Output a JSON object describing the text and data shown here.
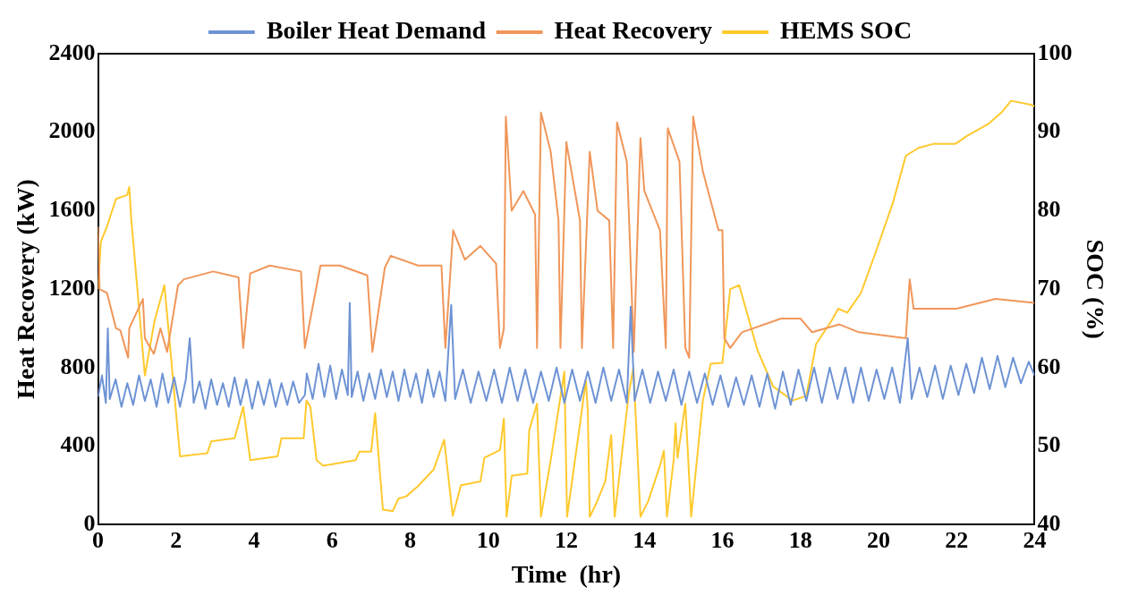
{
  "chart_data": {
    "type": "line",
    "xlabel": "Time  (hr)",
    "ylabel": "Heat Recovery (kW)",
    "y2label": "SOC (%)",
    "xlim": [
      0,
      24
    ],
    "xticks": [
      0,
      2,
      4,
      6,
      8,
      10,
      12,
      14,
      16,
      18,
      20,
      22,
      24
    ],
    "ylim": [
      0,
      2400
    ],
    "yticks": [
      0,
      400,
      800,
      1200,
      1600,
      2000,
      2400
    ],
    "y2lim": [
      40,
      100
    ],
    "y2ticks": [
      40,
      50,
      60,
      70,
      80,
      90,
      100
    ],
    "grid": false,
    "legend": "top",
    "marker": "none",
    "line_style": "solid",
    "series": [
      {
        "name": "Boiler Heat Demand",
        "color": "#6e93d4",
        "x": [
          0,
          0.1,
          0.2,
          0.25,
          0.3,
          0.45,
          0.6,
          0.75,
          0.9,
          1.05,
          1.2,
          1.35,
          1.5,
          1.65,
          1.8,
          1.95,
          2.1,
          2.25,
          2.35,
          2.45,
          2.6,
          2.75,
          2.9,
          3.05,
          3.2,
          3.35,
          3.5,
          3.65,
          3.8,
          3.95,
          4.1,
          4.25,
          4.4,
          4.55,
          4.7,
          4.85,
          5.0,
          5.15,
          5.3,
          5.35,
          5.5,
          5.65,
          5.8,
          5.95,
          6.1,
          6.25,
          6.4,
          6.45,
          6.5,
          6.65,
          6.8,
          6.95,
          7.1,
          7.25,
          7.4,
          7.55,
          7.7,
          7.85,
          8.0,
          8.15,
          8.3,
          8.45,
          8.6,
          8.75,
          8.9,
          9.05,
          9.15,
          9.35,
          9.55,
          9.75,
          9.95,
          10.15,
          10.35,
          10.55,
          10.75,
          10.95,
          11.15,
          11.35,
          11.55,
          11.75,
          11.95,
          12.15,
          12.35,
          12.55,
          12.75,
          12.95,
          13.15,
          13.35,
          13.55,
          13.65,
          13.75,
          13.95,
          14.15,
          14.35,
          14.55,
          14.75,
          14.95,
          15.15,
          15.35,
          15.55,
          15.75,
          15.95,
          16.15,
          16.35,
          16.55,
          16.75,
          16.95,
          17.15,
          17.35,
          17.55,
          17.75,
          17.95,
          18.15,
          18.35,
          18.55,
          18.75,
          18.95,
          19.15,
          19.35,
          19.55,
          19.75,
          19.95,
          20.15,
          20.35,
          20.55,
          20.75,
          20.85,
          21.05,
          21.25,
          21.45,
          21.65,
          21.85,
          22.05,
          22.25,
          22.45,
          22.65,
          22.85,
          23.05,
          23.25,
          23.45,
          23.65,
          23.85,
          24
        ],
        "values": [
          650,
          760,
          620,
          1000,
          640,
          740,
          600,
          720,
          610,
          760,
          630,
          740,
          600,
          770,
          620,
          750,
          600,
          740,
          950,
          620,
          730,
          590,
          740,
          610,
          720,
          600,
          750,
          610,
          740,
          590,
          730,
          610,
          740,
          600,
          720,
          610,
          730,
          620,
          660,
          770,
          640,
          820,
          650,
          810,
          640,
          790,
          660,
          1130,
          650,
          780,
          630,
          770,
          640,
          790,
          650,
          780,
          630,
          790,
          650,
          770,
          620,
          790,
          650,
          780,
          630,
          1120,
          640,
          790,
          620,
          780,
          630,
          790,
          620,
          800,
          630,
          790,
          620,
          780,
          630,
          800,
          620,
          790,
          630,
          780,
          620,
          800,
          630,
          790,
          620,
          1110,
          630,
          790,
          620,
          780,
          630,
          790,
          610,
          780,
          620,
          770,
          610,
          760,
          600,
          750,
          610,
          760,
          600,
          770,
          590,
          780,
          610,
          790,
          630,
          800,
          620,
          800,
          640,
          800,
          620,
          800,
          630,
          790,
          640,
          800,
          620,
          950,
          640,
          800,
          650,
          810,
          640,
          810,
          660,
          820,
          670,
          850,
          690,
          860,
          700,
          850,
          720,
          830,
          760
        ]
      },
      {
        "name": "Heat Recovery",
        "color": "#f0965a",
        "x": [
          0,
          0.04,
          0.23,
          0.46,
          0.57,
          0.77,
          0.8,
          1.15,
          1.2,
          1.43,
          1.6,
          1.77,
          2.05,
          2.2,
          2.95,
          3.6,
          3.72,
          3.9,
          4.4,
          5.2,
          5.3,
          5.7,
          6.2,
          6.9,
          7.03,
          7.35,
          7.5,
          8.2,
          8.8,
          8.9,
          9.1,
          9.4,
          9.8,
          10.2,
          10.3,
          10.4,
          10.45,
          10.6,
          10.9,
          11.2,
          11.25,
          11.35,
          11.6,
          11.8,
          11.85,
          12.0,
          12.35,
          12.4,
          12.6,
          12.8,
          13.1,
          13.2,
          13.3,
          13.55,
          13.6,
          13.73,
          13.9,
          14.0,
          14.4,
          14.55,
          14.6,
          14.9,
          15.05,
          15.15,
          15.25,
          15.5,
          15.9,
          16.0,
          16.05,
          16.2,
          16.5,
          17.5,
          18.0,
          18.3,
          19.0,
          19.5,
          20.7,
          20.8,
          20.9,
          22.0,
          23.0,
          24
        ],
        "values": [
          1520,
          1200,
          1180,
          1000,
          990,
          850,
          1000,
          1150,
          950,
          870,
          1000,
          880,
          1220,
          1250,
          1290,
          1260,
          900,
          1280,
          1320,
          1290,
          900,
          1320,
          1320,
          1270,
          880,
          1310,
          1370,
          1320,
          1320,
          900,
          1500,
          1350,
          1420,
          1330,
          900,
          1000,
          2080,
          1600,
          1700,
          1580,
          900,
          2100,
          1900,
          1550,
          900,
          1950,
          1550,
          900,
          1900,
          1600,
          1550,
          900,
          2050,
          1850,
          1600,
          880,
          1970,
          1700,
          1500,
          900,
          2020,
          1850,
          900,
          850,
          2080,
          1800,
          1500,
          1500,
          950,
          900,
          980,
          1050,
          1050,
          980,
          1020,
          980,
          950,
          1250,
          1100,
          1100,
          1150,
          1130
        ]
      },
      {
        "name": "HEMS SOC",
        "color": "#ffc92e",
        "axis": "y2",
        "x": [
          0,
          0.07,
          0.23,
          0.46,
          0.75,
          0.8,
          0.85,
          1.2,
          1.45,
          1.7,
          1.83,
          2.1,
          2.8,
          2.9,
          3.5,
          3.72,
          3.9,
          4.6,
          4.7,
          5.27,
          5.34,
          5.44,
          5.6,
          5.77,
          6.6,
          6.7,
          7.0,
          7.1,
          7.3,
          7.55,
          7.7,
          7.9,
          8.2,
          8.6,
          8.87,
          9.09,
          9.3,
          9.8,
          9.9,
          10.3,
          10.4,
          10.47,
          10.6,
          11.0,
          11.05,
          11.25,
          11.35,
          11.6,
          11.95,
          12.02,
          12.4,
          12.5,
          12.55,
          12.6,
          12.75,
          13.0,
          13.15,
          13.24,
          13.6,
          13.72,
          13.9,
          14.1,
          14.4,
          14.5,
          14.58,
          14.75,
          14.8,
          14.85,
          15.05,
          15.2,
          15.5,
          15.7,
          16.0,
          16.2,
          16.43,
          16.9,
          17.3,
          17.8,
          18.15,
          18.4,
          18.8,
          18.97,
          19.2,
          19.55,
          19.95,
          20.37,
          20.7,
          21.03,
          21.4,
          21.97,
          22.26,
          22.8,
          23.15,
          23.4,
          23.9,
          24
        ],
        "values": [
          70,
          76,
          78,
          81.5,
          82,
          83,
          79,
          59,
          66,
          70.5,
          63.5,
          48.7,
          49.1,
          50.6,
          51,
          55,
          48.2,
          48.7,
          51,
          51,
          55.8,
          55,
          48.2,
          47.5,
          48.2,
          49.3,
          49.3,
          54.2,
          41.9,
          41.7,
          43.3,
          43.6,
          44.9,
          47,
          50.8,
          41.1,
          45,
          45.5,
          48.5,
          49.5,
          53.5,
          41,
          46.2,
          46.5,
          52,
          55.4,
          41,
          48.2,
          59.5,
          41,
          54.6,
          58.4,
          54.6,
          41,
          42.5,
          45.5,
          51.4,
          41,
          56.7,
          60,
          41,
          43,
          47.5,
          49.4,
          41,
          48.2,
          52.9,
          48.5,
          55.4,
          41,
          55.8,
          60.5,
          60.6,
          70,
          70.5,
          62.2,
          57.6,
          55.8,
          56.4,
          63,
          66,
          67.5,
          67,
          69.5,
          75,
          81,
          87,
          88,
          88.5,
          88.5,
          89.5,
          91,
          92.5,
          94,
          93.5,
          93.3
        ]
      }
    ]
  }
}
